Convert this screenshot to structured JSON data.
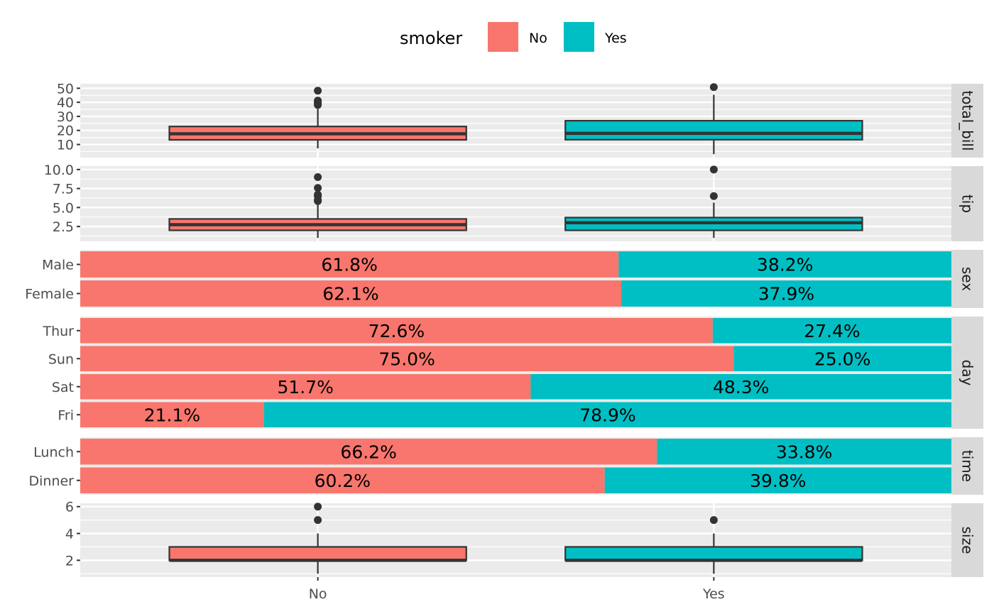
{
  "chart_data": {
    "type": "faceted-boxplot-and-stacked-bar",
    "legend": {
      "title": "smoker",
      "position": "top",
      "entries": [
        {
          "label": "No",
          "color": "#F8766D"
        },
        {
          "label": "Yes",
          "color": "#00BFC4"
        }
      ]
    },
    "x_categories": [
      "No",
      "Yes"
    ],
    "colors": {
      "panel_bg": "#EBEBEB",
      "strip_bg": "#D9D9D9",
      "grid": "#FFFFFF",
      "axis_text": "#4D4D4D",
      "box_line": "#333333"
    },
    "panels": [
      {
        "strip": "total_bill",
        "type": "boxplot",
        "ylim": [
          0.68,
          53.2
        ],
        "yticks": [
          10,
          20,
          30,
          40,
          50
        ],
        "ytick_labels": [
          "10",
          "20",
          "30",
          "40",
          "50"
        ],
        "boxes": [
          {
            "group": "No",
            "min": 7.25,
            "q1": 13.3,
            "median": 17.6,
            "q3": 22.8,
            "max": 35.3,
            "outliers": [
              38.1,
              39.4,
              40.6,
              41.2,
              48.3
            ]
          },
          {
            "group": "Yes",
            "min": 3.07,
            "q1": 13.4,
            "median": 17.9,
            "q3": 26.9,
            "max": 45.4,
            "outliers": [
              50.8
            ]
          }
        ]
      },
      {
        "strip": "tip",
        "type": "boxplot",
        "ylim": [
          0.55,
          10.45
        ],
        "yticks": [
          2.5,
          5.0,
          7.5,
          10.0
        ],
        "ytick_labels": [
          "2.5",
          "5.0",
          "7.5",
          "10.0"
        ],
        "boxes": [
          {
            "group": "No",
            "min": 1.0,
            "q1": 2.0,
            "median": 2.74,
            "q3": 3.5,
            "max": 5.5,
            "outliers": [
              5.85,
              6.0,
              6.5,
              6.7,
              7.58,
              9.0
            ]
          },
          {
            "group": "Yes",
            "min": 1.0,
            "q1": 2.0,
            "median": 3.0,
            "q3": 3.68,
            "max": 5.65,
            "outliers": [
              6.5,
              10.0
            ]
          }
        ]
      },
      {
        "strip": "sex",
        "type": "stacked-bar",
        "categories": [
          "Male",
          "Female"
        ],
        "bars": [
          {
            "category": "Male",
            "No": 61.8,
            "Yes": 38.2,
            "labels": [
              "61.8%",
              "38.2%"
            ]
          },
          {
            "category": "Female",
            "No": 62.1,
            "Yes": 37.9,
            "labels": [
              "62.1%",
              "37.9%"
            ]
          }
        ]
      },
      {
        "strip": "day",
        "type": "stacked-bar",
        "categories": [
          "Thur",
          "Sun",
          "Sat",
          "Fri"
        ],
        "bars": [
          {
            "category": "Thur",
            "No": 72.6,
            "Yes": 27.4,
            "labels": [
              "72.6%",
              "27.4%"
            ]
          },
          {
            "category": "Sun",
            "No": 75.0,
            "Yes": 25.0,
            "labels": [
              "75.0%",
              "25.0%"
            ]
          },
          {
            "category": "Sat",
            "No": 51.7,
            "Yes": 48.3,
            "labels": [
              "51.7%",
              "48.3%"
            ]
          },
          {
            "category": "Fri",
            "No": 21.1,
            "Yes": 78.9,
            "labels": [
              "21.1%",
              "78.9%"
            ]
          }
        ]
      },
      {
        "strip": "time",
        "type": "stacked-bar",
        "categories": [
          "Lunch",
          "Dinner"
        ],
        "bars": [
          {
            "category": "Lunch",
            "No": 66.2,
            "Yes": 33.8,
            "labels": [
              "66.2%",
              "33.8%"
            ]
          },
          {
            "category": "Dinner",
            "No": 60.2,
            "Yes": 39.8,
            "labels": [
              "60.2%",
              "39.8%"
            ]
          }
        ]
      },
      {
        "strip": "size",
        "type": "boxplot",
        "ylim": [
          0.75,
          6.25
        ],
        "yticks": [
          2,
          4,
          6
        ],
        "ytick_labels": [
          "2",
          "4",
          "6"
        ],
        "boxes": [
          {
            "group": "No",
            "min": 1,
            "q1": 2,
            "median": 2,
            "q3": 3,
            "max": 4,
            "outliers": [
              5,
              6
            ]
          },
          {
            "group": "Yes",
            "min": 1,
            "q1": 2,
            "median": 2,
            "q3": 3,
            "max": 4,
            "outliers": [
              5
            ]
          }
        ]
      }
    ]
  }
}
